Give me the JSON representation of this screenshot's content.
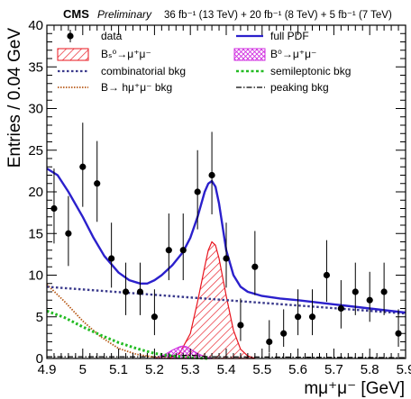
{
  "header": {
    "experiment": "CMS",
    "status": "Preliminary",
    "lumi": "36 fb⁻¹ (13 TeV) + 20 fb⁻¹ (8 TeV) + 5 fb⁻¹ (7 TeV)"
  },
  "legend": {
    "data": "data",
    "full_pdf": "full PDF",
    "bs_signal": "Bₛ⁰→μ⁺μ⁻",
    "bd_signal": "B⁰→μ⁺μ⁻",
    "combinatorial": "combinatorial bkg",
    "semileptonic": "semileptonic bkg",
    "b_to_hmumu": "B→ hμ⁺μ⁻ bkg",
    "peaking": "peaking bkg"
  },
  "colors": {
    "full_pdf": "#2b20cc",
    "bs_signal": "#e8141e",
    "bd_signal": "#d030e0",
    "combinatorial": "#3a3a8c",
    "semileptonic": "#22bb22",
    "b_to_hmumu": "#b85a18",
    "peaking": "#000000"
  },
  "chart_data": {
    "type": "scatter",
    "xlabel": "mμ⁺μ⁻ [GeV]",
    "ylabel": "Entries / 0.04 GeV",
    "xlim": [
      4.9,
      5.9
    ],
    "ylim": [
      0,
      40
    ],
    "xticks": [
      "4.9",
      "5",
      "5.1",
      "5.2",
      "5.3",
      "5.4",
      "5.5",
      "5.6",
      "5.7",
      "5.8",
      "5.9"
    ],
    "yticks": [
      "0",
      "5",
      "10",
      "15",
      "20",
      "25",
      "30",
      "35",
      "40"
    ],
    "data_points": [
      {
        "x": 4.92,
        "y": 18,
        "lo": 13.8,
        "hi": 22.8
      },
      {
        "x": 4.96,
        "y": 15,
        "lo": 11.1,
        "hi": 19.5
      },
      {
        "x": 5.0,
        "y": 23,
        "lo": 18.2,
        "hi": 28.3
      },
      {
        "x": 5.04,
        "y": 21,
        "lo": 16.4,
        "hi": 26.1
      },
      {
        "x": 5.08,
        "y": 12,
        "lo": 8.5,
        "hi": 16.3
      },
      {
        "x": 5.12,
        "y": 8,
        "lo": 5.2,
        "hi": 11.5
      },
      {
        "x": 5.16,
        "y": 8,
        "lo": 5.2,
        "hi": 11.5
      },
      {
        "x": 5.2,
        "y": 5,
        "lo": 2.8,
        "hi": 8.3
      },
      {
        "x": 5.24,
        "y": 13,
        "lo": 9.4,
        "hi": 17.4
      },
      {
        "x": 5.28,
        "y": 13,
        "lo": 9.4,
        "hi": 17.4
      },
      {
        "x": 5.32,
        "y": 20,
        "lo": 15.5,
        "hi": 25.0
      },
      {
        "x": 5.36,
        "y": 22,
        "lo": 17.3,
        "hi": 27.2
      },
      {
        "x": 5.4,
        "y": 12,
        "lo": 8.5,
        "hi": 16.3
      },
      {
        "x": 5.44,
        "y": 4,
        "lo": 2.1,
        "hi": 7.2
      },
      {
        "x": 5.48,
        "y": 11,
        "lo": 7.6,
        "hi": 15.3
      },
      {
        "x": 5.52,
        "y": 2,
        "lo": 0.7,
        "hi": 4.6
      },
      {
        "x": 5.56,
        "y": 3,
        "lo": 1.4,
        "hi": 5.9
      },
      {
        "x": 5.6,
        "y": 5,
        "lo": 2.8,
        "hi": 8.3
      },
      {
        "x": 5.64,
        "y": 5,
        "lo": 2.8,
        "hi": 8.3
      },
      {
        "x": 5.68,
        "y": 10,
        "lo": 6.8,
        "hi": 14.2
      },
      {
        "x": 5.72,
        "y": 6,
        "lo": 3.6,
        "hi": 9.4
      },
      {
        "x": 5.76,
        "y": 8,
        "lo": 5.2,
        "hi": 11.5
      },
      {
        "x": 5.8,
        "y": 7,
        "lo": 4.4,
        "hi": 10.4
      },
      {
        "x": 5.84,
        "y": 8,
        "lo": 5.2,
        "hi": 11.5
      },
      {
        "x": 5.88,
        "y": 3,
        "lo": 1.4,
        "hi": 5.9
      }
    ],
    "series": [
      {
        "name": "full PDF",
        "kind": "full_pdf",
        "style": "solid",
        "x": [
          4.9,
          4.93,
          4.96,
          5.0,
          5.03,
          5.06,
          5.1,
          5.13,
          5.16,
          5.18,
          5.2,
          5.22,
          5.25,
          5.28,
          5.3,
          5.32,
          5.34,
          5.35,
          5.36,
          5.37,
          5.38,
          5.39,
          5.4,
          5.42,
          5.44,
          5.46,
          5.5,
          5.55,
          5.6,
          5.7,
          5.8,
          5.9
        ],
        "y": [
          22.8,
          22.0,
          20.0,
          17.0,
          14.5,
          12.3,
          10.3,
          9.4,
          9.0,
          9.0,
          9.4,
          10.0,
          11.2,
          12.8,
          14.5,
          17.0,
          20.0,
          21.0,
          21.3,
          20.6,
          18.6,
          15.8,
          13.0,
          10.0,
          8.6,
          8.0,
          7.5,
          7.2,
          7.0,
          6.5,
          6.0,
          5.5
        ]
      },
      {
        "name": "combinatorial bkg",
        "kind": "combinatorial",
        "style": "dotted",
        "x": [
          4.9,
          5.9
        ],
        "y": [
          8.6,
          5.4
        ]
      },
      {
        "name": "semileptonic bkg",
        "kind": "semileptonic",
        "style": "dotted",
        "x": [
          4.9,
          4.95,
          5.0,
          5.05,
          5.1,
          5.15,
          5.2,
          5.25,
          5.3,
          5.35
        ],
        "y": [
          5.7,
          4.9,
          3.8,
          2.8,
          1.9,
          1.2,
          0.6,
          0.3,
          0.1,
          0.0
        ]
      },
      {
        "name": "B→ hμ⁺μ⁻ bkg",
        "kind": "b_to_hmumu",
        "style": "dotted",
        "x": [
          4.9,
          4.95,
          5.0,
          5.05,
          5.1,
          5.15,
          5.2,
          5.25
        ],
        "y": [
          8.9,
          6.8,
          4.5,
          2.6,
          1.2,
          0.5,
          0.15,
          0.0
        ]
      },
      {
        "name": "peaking bkg",
        "kind": "peaking",
        "style": "dashdot",
        "x": [
          4.9,
          5.2,
          5.25,
          5.3,
          5.35,
          5.9
        ],
        "y": [
          0.2,
          0.2,
          0.3,
          0.4,
          0.2,
          0.1
        ]
      }
    ],
    "signals": [
      {
        "name": "Bₛ⁰→μ⁺μ⁻",
        "kind": "bs_signal",
        "hatch": "diagonal",
        "x": [
          5.24,
          5.27,
          5.3,
          5.32,
          5.34,
          5.35,
          5.36,
          5.37,
          5.38,
          5.4,
          5.42,
          5.44,
          5.46,
          5.48
        ],
        "y": [
          0,
          0.6,
          3.0,
          6.8,
          11.0,
          13.0,
          14.0,
          13.6,
          12.0,
          7.5,
          3.4,
          1.1,
          0.3,
          0
        ]
      },
      {
        "name": "B⁰→μ⁺μ⁻",
        "kind": "bd_signal",
        "hatch": "cross",
        "x": [
          5.2,
          5.23,
          5.25,
          5.27,
          5.28,
          5.29,
          5.3,
          5.32,
          5.34,
          5.36
        ],
        "y": [
          0,
          0.5,
          1.0,
          1.4,
          1.5,
          1.4,
          1.1,
          0.6,
          0.2,
          0
        ]
      }
    ]
  }
}
